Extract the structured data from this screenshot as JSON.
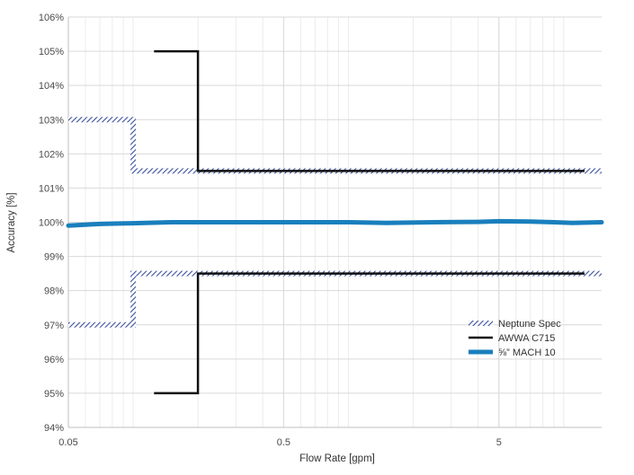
{
  "chart_data": {
    "type": "line",
    "title": "",
    "xlabel": "Flow Rate [gpm]",
    "ylabel": "Accuracy [%]",
    "x_scale": "log",
    "xlim": [
      0.05,
      15
    ],
    "ylim": [
      94,
      106
    ],
    "x_ticks": [
      {
        "value": 0.05,
        "label": "0.05"
      },
      {
        "value": 0.5,
        "label": "0.5"
      },
      {
        "value": 5,
        "label": "5"
      }
    ],
    "y_ticks": [
      {
        "value": 94,
        "label": "94%"
      },
      {
        "value": 95,
        "label": "95%"
      },
      {
        "value": 96,
        "label": "96%"
      },
      {
        "value": 97,
        "label": "97%"
      },
      {
        "value": 98,
        "label": "98%"
      },
      {
        "value": 99,
        "label": "99%"
      },
      {
        "value": 100,
        "label": "100%"
      },
      {
        "value": 101,
        "label": "101%"
      },
      {
        "value": 102,
        "label": "102%"
      },
      {
        "value": 103,
        "label": "103%"
      },
      {
        "value": 104,
        "label": "104%"
      },
      {
        "value": 105,
        "label": "105%"
      },
      {
        "value": 106,
        "label": "106%"
      }
    ],
    "grid": true,
    "legend_position": "right",
    "series": [
      {
        "name": "Neptune Spec",
        "style": "hatched-band",
        "color": "#3b4f9c",
        "lines": [
          {
            "x": [
              0.05,
              0.1,
              0.1,
              15
            ],
            "y": [
              103,
              103,
              101.5,
              101.5
            ]
          },
          {
            "x": [
              0.05,
              0.1,
              0.1,
              15
            ],
            "y": [
              97,
              97,
              98.5,
              98.5
            ]
          }
        ]
      },
      {
        "name": "AWWA C715",
        "style": "solid",
        "color": "#111111",
        "lines": [
          {
            "x": [
              0.125,
              0.2,
              0.2,
              12.5
            ],
            "y": [
              105,
              105,
              101.5,
              101.5
            ]
          },
          {
            "x": [
              0.125,
              0.2,
              0.2,
              12.5
            ],
            "y": [
              95,
              95,
              98.5,
              98.5
            ]
          }
        ]
      },
      {
        "name": "⅝” MACH 10",
        "style": "thick",
        "color": "#1a7fbd",
        "lines": [
          {
            "x": [
              0.05,
              0.07,
              0.1,
              0.15,
              0.3,
              0.6,
              1,
              1.5,
              2.5,
              4,
              5,
              7,
              9,
              11,
              15
            ],
            "y": [
              99.9,
              99.95,
              99.97,
              100.0,
              100.0,
              100.0,
              100.0,
              99.98,
              100.0,
              100.01,
              100.03,
              100.02,
              100.0,
              99.98,
              100.0
            ]
          }
        ]
      }
    ]
  }
}
